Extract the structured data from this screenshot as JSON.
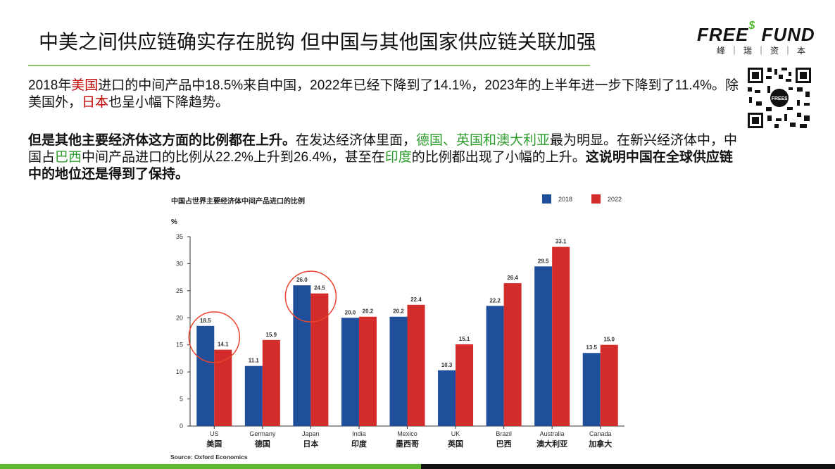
{
  "slide": {
    "title": "中美之间供应链确实存在脱钩 但中国与其他国家供应链关联加强",
    "logo": {
      "main_a": "FREE",
      "main_s": "$",
      "main_b": " FUND",
      "sub": "峰｜瑞｜资｜本",
      "badge": "FREE$"
    },
    "para1": {
      "s1": "2018年",
      "r1": "美国",
      "s2": "进口的中间产品中18.5%来自中国，2022年已经下降到了14.1%，2023年的上半年进一步下降到了11.4%。除美国外，",
      "r2": "日本",
      "s3": "也呈小幅下降趋势。"
    },
    "para2": {
      "b1": "但是其他主要经济体这方面的比例都在上升。",
      "s1": "在发达经济体里面，",
      "g1": "德国、英国和澳大利亚",
      "s2": "最为明显。在新兴经济体中，中国占",
      "g2": "巴西",
      "s3": "中间产品进口的比例从22.2%上升到26.4%，甚至在",
      "g3": "印度",
      "s4": "的比例都出现了小幅的上升。",
      "b2": "这说明中国在全球供应链中的地位还是得到了保持。"
    }
  },
  "chart_data": {
    "type": "bar",
    "title": "中国占世界主要经济体中间产品进口的比例",
    "ylabel": "%",
    "ylim": [
      0,
      35
    ],
    "yticks": [
      0,
      5,
      10,
      15,
      20,
      25,
      30,
      35
    ],
    "categories": [
      "US",
      "Germany",
      "Japan",
      "India",
      "Mexico",
      "UK",
      "Brazil",
      "Australia",
      "Canada"
    ],
    "categories_cn": [
      "美国",
      "德国",
      "日本",
      "印度",
      "墨西哥",
      "英国",
      "巴西",
      "澳大利亚",
      "加拿大"
    ],
    "series": [
      {
        "name": "2018",
        "color": "#1f4e9a",
        "values": [
          18.5,
          11.1,
          26.0,
          20.0,
          20.2,
          10.3,
          22.2,
          29.5,
          13.5
        ],
        "labels": [
          "18.5",
          "11.1",
          "26.0",
          "20.0",
          "20.2",
          "10.3",
          "22.2",
          "29.5",
          "13.5"
        ]
      },
      {
        "name": "2022",
        "color": "#d42b2b",
        "values": [
          14.1,
          15.9,
          24.5,
          20.2,
          22.4,
          15.1,
          26.4,
          33.1,
          15.0
        ],
        "labels": [
          "14.1",
          "15.9",
          "24.5",
          "20.2",
          "22.4",
          "15.1",
          "26.4",
          "33.1",
          "15.0"
        ]
      }
    ],
    "highlighted_categories": [
      "US",
      "Japan"
    ],
    "highlight_color": "#e8452c",
    "legend_position": "top-right",
    "source": "Source: Oxford Economics"
  }
}
